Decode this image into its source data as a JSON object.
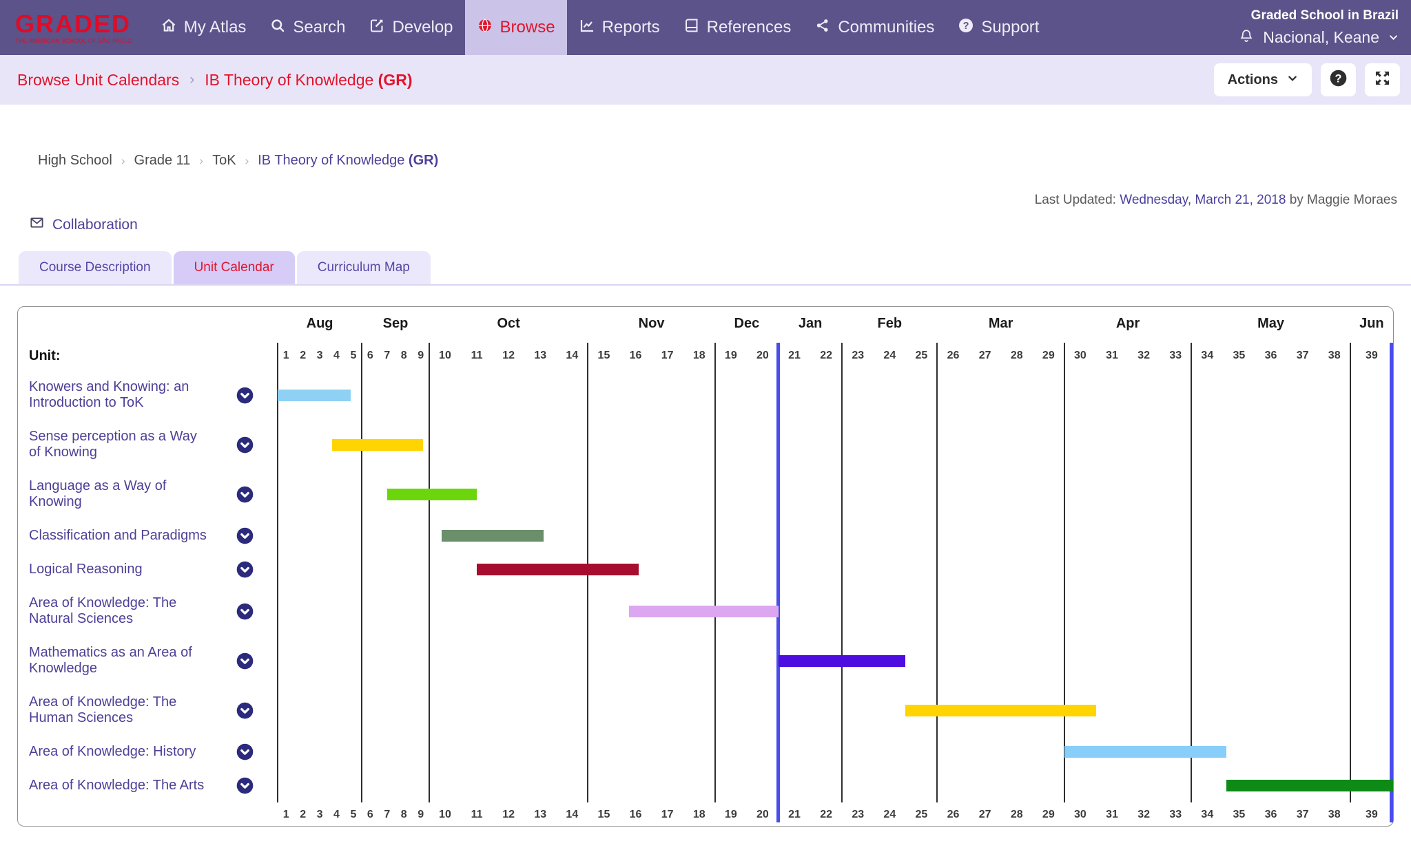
{
  "nav": {
    "logo": {
      "name": "GRADED",
      "tagline": "THE AMERICAN SCHOOL OF SÃO PAULO"
    },
    "items": [
      {
        "label": "My Atlas",
        "icon": "home-icon",
        "active": false
      },
      {
        "label": "Search",
        "icon": "search-icon",
        "active": false
      },
      {
        "label": "Develop",
        "icon": "edit-icon",
        "active": false
      },
      {
        "label": "Browse",
        "icon": "globe-icon",
        "active": true
      },
      {
        "label": "Reports",
        "icon": "chart-line-icon",
        "active": false
      },
      {
        "label": "References",
        "icon": "book-icon",
        "active": false
      },
      {
        "label": "Communities",
        "icon": "share-icon",
        "active": false
      },
      {
        "label": "Support",
        "icon": "question-circle-icon",
        "active": false
      }
    ],
    "school": "Graded School in Brazil",
    "user": "Nacional, Keane"
  },
  "toolbar": {
    "breadcrumb_root": "Browse Unit Calendars",
    "page_title": "IB Theory of Knowledge",
    "page_title_suffix": "(GR)",
    "actions_label": "Actions"
  },
  "page": {
    "path": [
      "High School",
      "Grade 11",
      "ToK"
    ],
    "title": "IB Theory of Knowledge",
    "title_suffix": "(GR)",
    "last_updated_prefix": "Last Updated:",
    "last_updated_date": "Wednesday, March 21, 2018",
    "last_updated_by": "by Maggie Moraes",
    "collaboration_label": "Collaboration",
    "tabs": [
      {
        "label": "Course Description",
        "active": false
      },
      {
        "label": "Unit Calendar",
        "active": true
      },
      {
        "label": "Curriculum Map",
        "active": false
      }
    ]
  },
  "chart_data": {
    "type": "gantt",
    "title": "Unit Calendar timeline, weeks 1-39, August through June",
    "unit_column_header": "Unit:",
    "months": [
      {
        "name": "Aug",
        "weeks": [
          1,
          2,
          3,
          4,
          5
        ]
      },
      {
        "name": "Sep",
        "weeks": [
          6,
          7,
          8,
          9
        ]
      },
      {
        "name": "Oct",
        "weeks": [
          10,
          11,
          12,
          13,
          14
        ]
      },
      {
        "name": "Nov",
        "weeks": [
          15,
          16,
          17,
          18
        ]
      },
      {
        "name": "Dec",
        "weeks": [
          19,
          20
        ]
      },
      {
        "name": "Jan",
        "weeks": [
          21,
          22
        ]
      },
      {
        "name": "Feb",
        "weeks": [
          23,
          24,
          25
        ]
      },
      {
        "name": "Mar",
        "weeks": [
          26,
          27,
          28,
          29
        ]
      },
      {
        "name": "Apr",
        "weeks": [
          30,
          31,
          32,
          33
        ]
      },
      {
        "name": "May",
        "weeks": [
          34,
          35,
          36,
          37,
          38
        ]
      },
      {
        "name": "Jun",
        "weeks": [
          39
        ]
      }
    ],
    "units": [
      {
        "name": "Knowers and Knowing: an Introduction to ToK",
        "start": 1,
        "end": 5.35,
        "color": "#8ED1F5"
      },
      {
        "name": "Sense perception as a Way of Knowing",
        "start": 4.25,
        "end": 9.65,
        "color": "#FFD400"
      },
      {
        "name": "Language as a Way of Knowing",
        "start": 7.5,
        "end": 11.5,
        "color": "#6CD60C"
      },
      {
        "name": "Classification and Paradigms",
        "start": 10.4,
        "end": 13.6,
        "color": "#6B8E6B"
      },
      {
        "name": "Logical Reasoning",
        "start": 11.5,
        "end": 16.6,
        "color": "#A60D2E"
      },
      {
        "name": "Area of Knowledge: The Natural Sciences",
        "start": 16.3,
        "end": 21,
        "color": "#DCA7F0"
      },
      {
        "name": "Mathematics as an Area of Knowledge",
        "start": 21,
        "end": 25,
        "color": "#4E0CE0"
      },
      {
        "name": "Area of Knowledge: The Human Sciences",
        "start": 25,
        "end": 31,
        "color": "#FFD400"
      },
      {
        "name": "Area of Knowledge: History",
        "start": 30,
        "end": 35.1,
        "color": "#87CEFA"
      },
      {
        "name": "Area of Knowledge: The Arts",
        "start": 35.1,
        "end": 40,
        "color": "#0E8A16"
      }
    ],
    "today_marker": {
      "position_week": 21,
      "color": "#4A4DEB"
    },
    "end_marker": {
      "position_week": 40,
      "color": "#4A4DEB"
    }
  }
}
